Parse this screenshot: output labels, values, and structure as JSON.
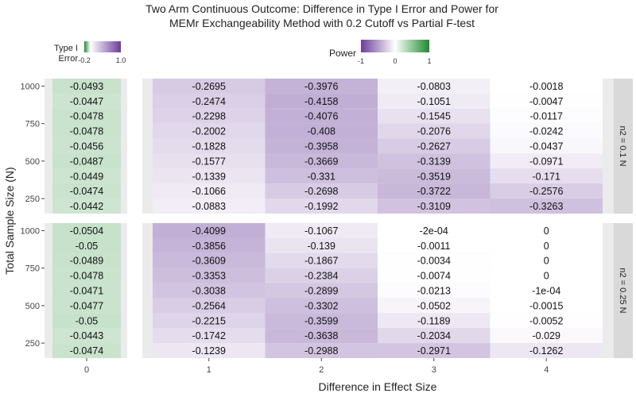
{
  "chart_data": {
    "type": "heatmap",
    "title_lines": [
      "Two Arm Continuous Outcome: Difference in Type I Error and Power for",
      "MEMr Exchangeability Method with 0.2 Cutoff vs Partial F-test"
    ],
    "xlabel": "Difference in Effect Size",
    "ylabel": "Total Sample Size (N)",
    "y_tick_labels": [
      "1000",
      "750",
      "500",
      "250"
    ],
    "y_ticks": [
      1000,
      750,
      500,
      250
    ],
    "y_values": [
      1000,
      900,
      800,
      700,
      600,
      500,
      400,
      300,
      200
    ],
    "y_range": [
      150,
      1050
    ],
    "type1_legend": {
      "title_lines": [
        "Type I",
        "Error"
      ],
      "range": [
        -0.2,
        1.0
      ],
      "tick_labels": [
        "-0.2",
        "1.0"
      ]
    },
    "power_legend": {
      "title": "Power",
      "range": [
        -1,
        1
      ],
      "tick_labels": [
        "-1",
        "0",
        "1"
      ]
    },
    "colors": {
      "negative": "#6a3d9a",
      "mid": "#ffffff",
      "positive": "#1f8a2e",
      "panel_bg": "#ebebeb",
      "strip_bg": "#d9d9d9"
    },
    "panels": [
      {
        "strip": "n2 = 0.1 N",
        "type1": {
          "x": "0",
          "values": [
            -0.0493,
            -0.0447,
            -0.0478,
            -0.0478,
            -0.0456,
            -0.0487,
            -0.0449,
            -0.0474,
            -0.0442
          ]
        },
        "power": {
          "x": [
            "1",
            "2",
            "3",
            "4"
          ],
          "values": [
            [
              -0.2695,
              -0.3976,
              -0.0803,
              -0.0018
            ],
            [
              -0.2474,
              -0.4158,
              -0.1051,
              -0.0047
            ],
            [
              -0.2298,
              -0.4076,
              -0.1545,
              -0.0117
            ],
            [
              -0.2002,
              -0.408,
              -0.2076,
              -0.0242
            ],
            [
              -0.1828,
              -0.3958,
              -0.2627,
              -0.0437
            ],
            [
              -0.1577,
              -0.3669,
              -0.3139,
              -0.0971
            ],
            [
              -0.1339,
              -0.331,
              -0.3519,
              -0.171
            ],
            [
              -0.1066,
              -0.2698,
              -0.3722,
              -0.2576
            ],
            [
              -0.0883,
              -0.1992,
              -0.3109,
              -0.3263
            ]
          ],
          "labels": [
            [
              "-0.2695",
              "-0.3976",
              "-0.0803",
              "-0.0018"
            ],
            [
              "-0.2474",
              "-0.4158",
              "-0.1051",
              "-0.0047"
            ],
            [
              "-0.2298",
              "-0.4076",
              "-0.1545",
              "-0.0117"
            ],
            [
              "-0.2002",
              "-0.408",
              "-0.2076",
              "-0.0242"
            ],
            [
              "-0.1828",
              "-0.3958",
              "-0.2627",
              "-0.0437"
            ],
            [
              "-0.1577",
              "-0.3669",
              "-0.3139",
              "-0.0971"
            ],
            [
              "-0.1339",
              "-0.331",
              "-0.3519",
              "-0.171"
            ],
            [
              "-0.1066",
              "-0.2698",
              "-0.3722",
              "-0.2576"
            ],
            [
              "-0.0883",
              "-0.1992",
              "-0.3109",
              "-0.3263"
            ]
          ]
        }
      },
      {
        "strip": "n2 = 0.25 N",
        "type1": {
          "x": "0",
          "values": [
            -0.0504,
            -0.05,
            -0.0489,
            -0.0478,
            -0.0471,
            -0.0477,
            -0.05,
            -0.0443,
            -0.0474
          ]
        },
        "power": {
          "x": [
            "1",
            "2",
            "3",
            "4"
          ],
          "values": [
            [
              -0.4099,
              -0.1067,
              -0.0002,
              0
            ],
            [
              -0.3856,
              -0.139,
              -0.0011,
              0
            ],
            [
              -0.3609,
              -0.1867,
              -0.0034,
              0
            ],
            [
              -0.3353,
              -0.2384,
              -0.0074,
              0
            ],
            [
              -0.3038,
              -0.2899,
              -0.0213,
              -0.0001
            ],
            [
              -0.2564,
              -0.3302,
              -0.0502,
              -0.0015
            ],
            [
              -0.2215,
              -0.3599,
              -0.1189,
              -0.0052
            ],
            [
              -0.1742,
              -0.3638,
              -0.2034,
              -0.029
            ],
            [
              -0.1239,
              -0.2988,
              -0.2971,
              -0.1262
            ]
          ],
          "labels": [
            [
              "-0.4099",
              "-0.1067",
              "-2e-04",
              "0"
            ],
            [
              "-0.3856",
              "-0.139",
              "-0.0011",
              "0"
            ],
            [
              "-0.3609",
              "-0.1867",
              "-0.0034",
              "0"
            ],
            [
              "-0.3353",
              "-0.2384",
              "-0.0074",
              "0"
            ],
            [
              "-0.3038",
              "-0.2899",
              "-0.0213",
              "-1e-04"
            ],
            [
              "-0.2564",
              "-0.3302",
              "-0.0502",
              "-0.0015"
            ],
            [
              "-0.2215",
              "-0.3599",
              "-0.1189",
              "-0.0052"
            ],
            [
              "-0.1742",
              "-0.3638",
              "-0.2034",
              "-0.029"
            ],
            [
              "-0.1239",
              "-0.2988",
              "-0.2971",
              "-0.1262"
            ]
          ]
        }
      }
    ]
  }
}
